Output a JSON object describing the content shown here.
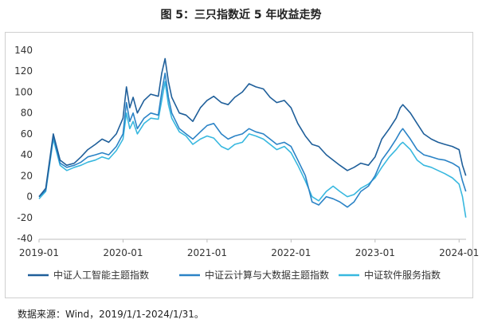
{
  "title": "图 5：三只指数近 5 年收益走势",
  "source": "数据来源：Wind，2019/1/1-2024/1/31。",
  "colors": {
    "series1": "#1f5f9a",
    "series2": "#2b83c6",
    "series3": "#38b8df",
    "axis": "#bdbdbd",
    "text": "#333333"
  },
  "chart_data": {
    "type": "line",
    "title": "图 5：三只指数近 5 年收益走势",
    "xlabel": "",
    "ylabel": "",
    "xlim": [
      2019.0,
      2024.083
    ],
    "ylim": [
      -40,
      140
    ],
    "y_ticks": [
      -40,
      -20,
      0,
      20,
      40,
      60,
      80,
      100,
      120,
      140
    ],
    "x_ticks": [
      {
        "x": 2019.0,
        "label": "2019-01"
      },
      {
        "x": 2020.0,
        "label": "2020-01"
      },
      {
        "x": 2021.0,
        "label": "2021-01"
      },
      {
        "x": 2022.0,
        "label": "2022-01"
      },
      {
        "x": 2023.0,
        "label": "2023-01"
      },
      {
        "x": 2024.0,
        "label": "2024-01"
      }
    ],
    "grid": false,
    "legend_position": "bottom",
    "series": [
      {
        "name": "中证人工智能主题指数",
        "x": [
          2019.0,
          2019.08,
          2019.17,
          2019.25,
          2019.33,
          2019.42,
          2019.5,
          2019.58,
          2019.67,
          2019.75,
          2019.83,
          2019.92,
          2020.0,
          2020.04,
          2020.08,
          2020.12,
          2020.17,
          2020.25,
          2020.33,
          2020.42,
          2020.46,
          2020.5,
          2020.54,
          2020.58,
          2020.67,
          2020.75,
          2020.83,
          2020.92,
          2021.0,
          2021.08,
          2021.17,
          2021.25,
          2021.33,
          2021.42,
          2021.5,
          2021.58,
          2021.67,
          2021.75,
          2021.83,
          2021.92,
          2022.0,
          2022.08,
          2022.17,
          2022.25,
          2022.33,
          2022.42,
          2022.5,
          2022.58,
          2022.67,
          2022.75,
          2022.83,
          2022.92,
          2023.0,
          2023.08,
          2023.17,
          2023.25,
          2023.3,
          2023.33,
          2023.42,
          2023.5,
          2023.58,
          2023.67,
          2023.75,
          2023.83,
          2023.92,
          2024.0,
          2024.04,
          2024.08
        ],
        "values": [
          0,
          8,
          60,
          35,
          30,
          32,
          38,
          45,
          50,
          55,
          52,
          60,
          75,
          105,
          85,
          95,
          80,
          92,
          98,
          96,
          118,
          132,
          110,
          95,
          80,
          78,
          72,
          85,
          92,
          96,
          90,
          88,
          95,
          100,
          108,
          105,
          103,
          95,
          90,
          92,
          85,
          70,
          58,
          50,
          48,
          40,
          35,
          30,
          25,
          28,
          32,
          30,
          38,
          55,
          65,
          75,
          85,
          88,
          80,
          70,
          60,
          55,
          52,
          50,
          48,
          45,
          30,
          20
        ]
      },
      {
        "name": "中证云计算与大数据主题指数",
        "x": [
          2019.0,
          2019.08,
          2019.17,
          2019.25,
          2019.33,
          2019.42,
          2019.5,
          2019.58,
          2019.67,
          2019.75,
          2019.83,
          2019.92,
          2020.0,
          2020.04,
          2020.08,
          2020.12,
          2020.17,
          2020.25,
          2020.33,
          2020.42,
          2020.46,
          2020.5,
          2020.54,
          2020.58,
          2020.67,
          2020.75,
          2020.83,
          2020.92,
          2021.0,
          2021.08,
          2021.17,
          2021.25,
          2021.33,
          2021.42,
          2021.5,
          2021.58,
          2021.67,
          2021.75,
          2021.83,
          2021.92,
          2022.0,
          2022.08,
          2022.17,
          2022.25,
          2022.33,
          2022.42,
          2022.5,
          2022.58,
          2022.67,
          2022.75,
          2022.83,
          2022.92,
          2023.0,
          2023.08,
          2023.17,
          2023.25,
          2023.3,
          2023.33,
          2023.42,
          2023.5,
          2023.58,
          2023.67,
          2023.75,
          2023.83,
          2023.92,
          2024.0,
          2024.04,
          2024.08
        ],
        "values": [
          0,
          6,
          58,
          32,
          28,
          30,
          33,
          38,
          40,
          42,
          40,
          48,
          60,
          90,
          72,
          80,
          65,
          75,
          80,
          78,
          100,
          118,
          95,
          80,
          65,
          60,
          55,
          62,
          68,
          70,
          60,
          55,
          58,
          60,
          65,
          62,
          60,
          55,
          50,
          52,
          48,
          35,
          20,
          -5,
          -8,
          0,
          -2,
          -5,
          -10,
          -5,
          5,
          10,
          20,
          35,
          45,
          55,
          62,
          65,
          55,
          45,
          40,
          38,
          36,
          35,
          32,
          28,
          15,
          5
        ]
      },
      {
        "name": "中证软件服务指数",
        "x": [
          2019.0,
          2019.08,
          2019.17,
          2019.25,
          2019.33,
          2019.42,
          2019.5,
          2019.58,
          2019.67,
          2019.75,
          2019.83,
          2019.92,
          2020.0,
          2020.04,
          2020.08,
          2020.12,
          2020.17,
          2020.25,
          2020.33,
          2020.42,
          2020.46,
          2020.5,
          2020.54,
          2020.58,
          2020.67,
          2020.75,
          2020.83,
          2020.92,
          2021.0,
          2021.08,
          2021.17,
          2021.25,
          2021.33,
          2021.42,
          2021.5,
          2021.58,
          2021.67,
          2021.75,
          2021.83,
          2021.92,
          2022.0,
          2022.08,
          2022.17,
          2022.25,
          2022.33,
          2022.42,
          2022.5,
          2022.58,
          2022.67,
          2022.75,
          2022.83,
          2022.92,
          2023.0,
          2023.08,
          2023.17,
          2023.25,
          2023.3,
          2023.33,
          2023.42,
          2023.5,
          2023.58,
          2023.67,
          2023.75,
          2023.83,
          2023.92,
          2024.0,
          2024.04,
          2024.08
        ],
        "values": [
          -2,
          5,
          55,
          30,
          25,
          28,
          30,
          33,
          35,
          38,
          36,
          44,
          55,
          80,
          65,
          72,
          60,
          70,
          75,
          74,
          92,
          110,
          88,
          75,
          62,
          58,
          50,
          55,
          58,
          56,
          48,
          45,
          50,
          52,
          60,
          58,
          55,
          50,
          45,
          48,
          42,
          30,
          15,
          0,
          -4,
          5,
          10,
          5,
          0,
          2,
          8,
          12,
          18,
          28,
          38,
          45,
          50,
          52,
          45,
          35,
          30,
          28,
          25,
          22,
          18,
          12,
          0,
          -20
        ]
      }
    ]
  }
}
